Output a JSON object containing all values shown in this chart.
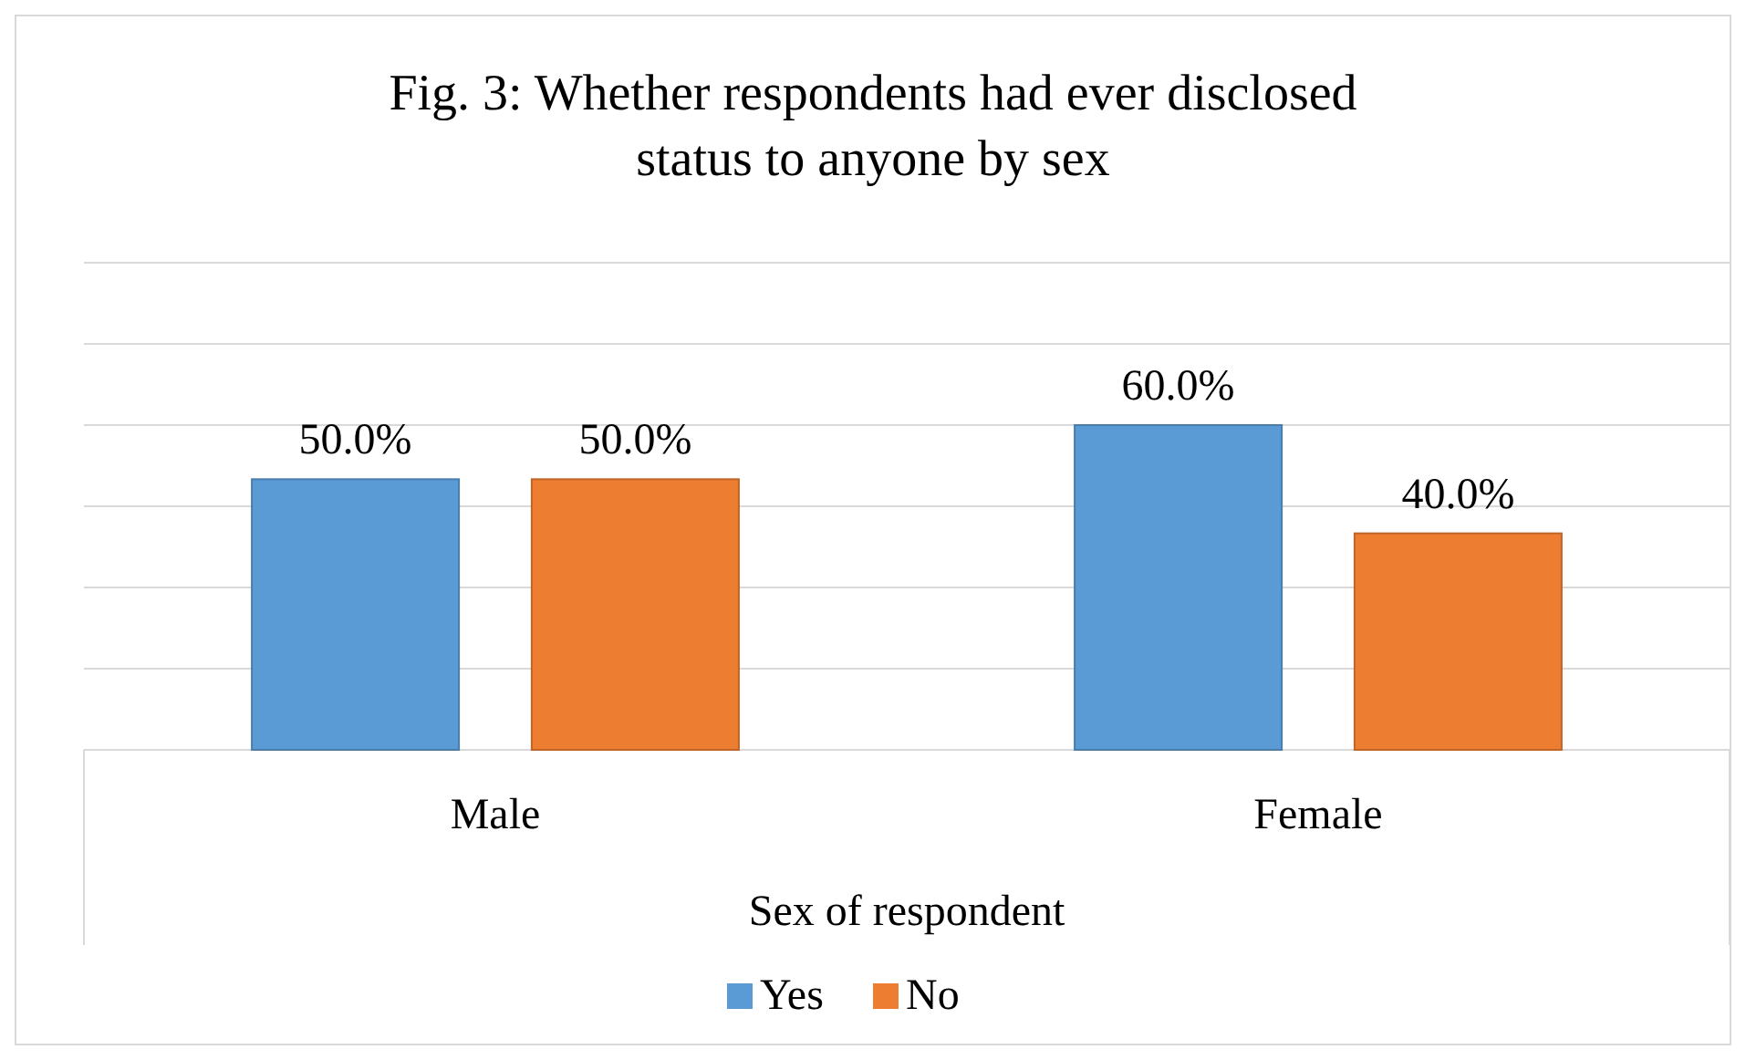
{
  "chart_data": {
    "type": "bar",
    "title": "Fig. 3: Whether respondents had ever disclosed status to anyone by sex",
    "xlabel": "Sex of respondent",
    "categories": [
      "Male",
      "Female"
    ],
    "series": [
      {
        "name": "Yes",
        "color": "#5b9bd5",
        "values": [
          50.0,
          60.0
        ],
        "value_labels": [
          "50.0%",
          "60.0%"
        ]
      },
      {
        "name": "No",
        "color": "#ed7d31",
        "values": [
          50.0,
          40.0
        ],
        "value_labels": [
          "50.0%",
          "40.0%"
        ]
      }
    ],
    "tick_labels": "x",
    "grid": "y",
    "legend": "bottom"
  }
}
